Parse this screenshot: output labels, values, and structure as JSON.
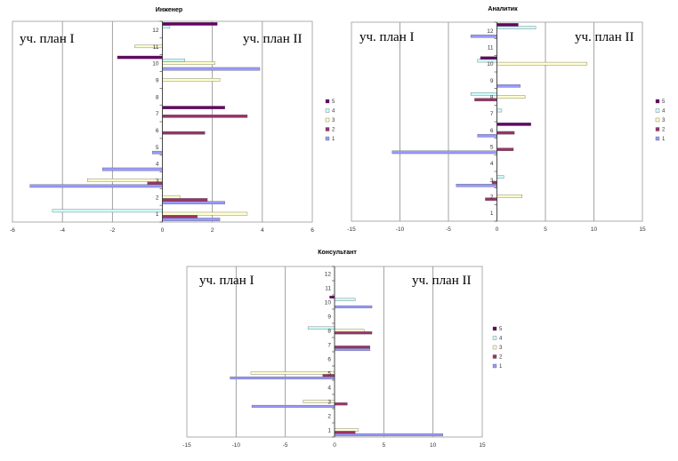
{
  "legend_colors": {
    "1": "#9999ff",
    "2": "#993366",
    "3": "#ffffcc",
    "4": "#ccffff",
    "5": "#660066"
  },
  "chart_data": [
    {
      "type": "bar",
      "orientation": "horizontal",
      "title": "Инженер",
      "left_label": "уч. план I",
      "right_label": "уч. план II",
      "xlim": [
        -6,
        6
      ],
      "xticks": [
        "-6",
        "-4",
        "-2",
        "0",
        "2",
        "4",
        "6"
      ],
      "xtick_values": [
        -6,
        -4,
        -2,
        0,
        2,
        4,
        6
      ],
      "categories": [
        "1",
        "2",
        "3",
        "4",
        "5",
        "6",
        "7",
        "8",
        "9",
        "10",
        "11",
        "12"
      ],
      "legend": [
        "5",
        "4",
        "3",
        "2",
        "1"
      ],
      "series": [
        {
          "name": "1",
          "values": [
            2.3,
            2.5,
            -5.3,
            -2.4,
            -0.4,
            0,
            0,
            0,
            0,
            3.9,
            0,
            0
          ]
        },
        {
          "name": "2",
          "values": [
            1.4,
            1.8,
            -0.6,
            0,
            0,
            1.7,
            3.4,
            0,
            0,
            0,
            0,
            0
          ]
        },
        {
          "name": "3",
          "values": [
            3.4,
            0.7,
            -3.0,
            0,
            0,
            0,
            0,
            0,
            2.3,
            2.1,
            -1.1,
            0
          ]
        },
        {
          "name": "4",
          "values": [
            -4.4,
            0,
            0,
            0,
            0,
            0,
            0,
            0,
            0,
            0.9,
            0,
            0.3
          ]
        },
        {
          "name": "5",
          "values": [
            0,
            0,
            0,
            0,
            0,
            0,
            2.5,
            0,
            0,
            -1.8,
            0,
            2.2
          ]
        }
      ]
    },
    {
      "type": "bar",
      "orientation": "horizontal",
      "title": "Аналитик",
      "left_label": "уч. план I",
      "right_label": "уч. план II",
      "xlim": [
        -15,
        15
      ],
      "xticks": [
        "-15",
        "-10",
        "-5",
        "0",
        "5",
        "10",
        "15"
      ],
      "xtick_values": [
        -15,
        -10,
        -5,
        0,
        5,
        10,
        15
      ],
      "categories": [
        "1",
        "2",
        "3",
        "4",
        "5",
        "6",
        "7",
        "8",
        "9",
        "10",
        "11",
        "12"
      ],
      "legend": [
        "5",
        "4",
        "3",
        "2",
        "1"
      ],
      "series": [
        {
          "name": "1",
          "values": [
            0,
            0,
            -4.2,
            0,
            -10.8,
            -2.0,
            0,
            0,
            2.4,
            0,
            0,
            -2.7
          ]
        },
        {
          "name": "2",
          "values": [
            0,
            -1.2,
            -0.5,
            0,
            1.7,
            1.8,
            0,
            -2.3,
            0,
            0,
            0,
            0
          ]
        },
        {
          "name": "3",
          "values": [
            0,
            2.6,
            0,
            0,
            0,
            0,
            0,
            2.9,
            0,
            9.3,
            0,
            0
          ]
        },
        {
          "name": "4",
          "values": [
            0,
            0,
            0.7,
            0,
            0,
            0,
            0.5,
            -2.7,
            0,
            -2.0,
            0,
            4.0
          ]
        },
        {
          "name": "5",
          "values": [
            0,
            0,
            0,
            0,
            0,
            3.5,
            0,
            0,
            0,
            -1.7,
            0,
            2.2
          ]
        }
      ]
    },
    {
      "type": "bar",
      "orientation": "horizontal",
      "title": "Консультант",
      "left_label": "уч. план I",
      "right_label": "уч. план II",
      "xlim": [
        -15,
        15
      ],
      "xticks": [
        "-15",
        "-10",
        "-5",
        "0",
        "5",
        "10",
        "15"
      ],
      "xtick_values": [
        -15,
        -10,
        -5,
        0,
        5,
        10,
        15
      ],
      "categories": [
        "1",
        "2",
        "3",
        "4",
        "5",
        "6",
        "7",
        "8",
        "9",
        "10",
        "11",
        "12"
      ],
      "legend": [
        "5",
        "4",
        "3",
        "2",
        "1"
      ],
      "series": [
        {
          "name": "1",
          "values": [
            11.0,
            0,
            -8.4,
            0,
            -10.6,
            0,
            3.6,
            0,
            0,
            3.8,
            0,
            0
          ]
        },
        {
          "name": "2",
          "values": [
            2.1,
            0,
            1.3,
            0,
            -1.2,
            0,
            3.6,
            3.8,
            0,
            0,
            0,
            0
          ]
        },
        {
          "name": "3",
          "values": [
            2.4,
            0,
            -3.2,
            0,
            -8.5,
            0,
            0,
            3.0,
            0,
            0,
            0,
            0
          ]
        },
        {
          "name": "4",
          "values": [
            0,
            0,
            0,
            0,
            0,
            0,
            0,
            -2.7,
            0,
            2.1,
            0,
            0
          ]
        },
        {
          "name": "5",
          "values": [
            0,
            0,
            0,
            0,
            0,
            0,
            0,
            0,
            0,
            -0.5,
            0,
            0
          ]
        }
      ]
    }
  ]
}
